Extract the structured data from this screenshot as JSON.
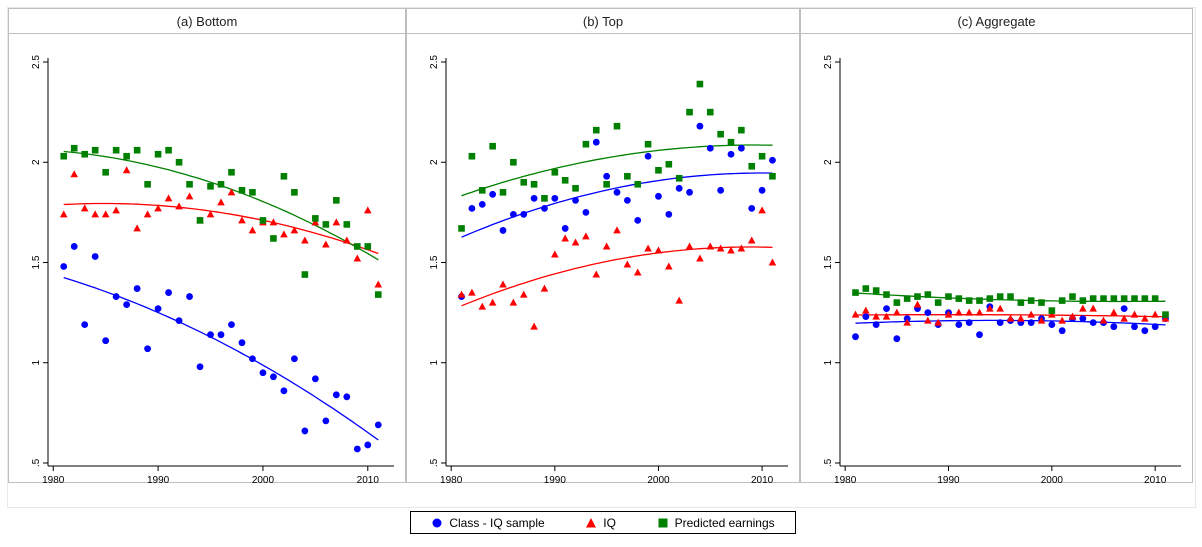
{
  "chart_data": {
    "type": "scatter",
    "panels": [
      {
        "title": "(a) Bottom",
        "xlim": [
          1979.5,
          2012.5
        ],
        "ylim": [
          0.5,
          2.5
        ],
        "series": [
          {
            "name": "Class - IQ sample",
            "color": "#0000ff",
            "marker": "circle",
            "x": [
              1981,
              1982,
              1983,
              1984,
              1985,
              1986,
              1987,
              1988,
              1989,
              1990,
              1991,
              1992,
              1993,
              1994,
              1995,
              1996,
              1997,
              1998,
              1999,
              2000,
              2001,
              2002,
              2003,
              2004,
              2005,
              2006,
              2007,
              2008,
              2009,
              2010,
              2011
            ],
            "y": [
              1.48,
              1.58,
              1.19,
              1.53,
              1.11,
              1.33,
              1.29,
              1.37,
              1.07,
              1.27,
              1.35,
              1.21,
              1.33,
              0.98,
              1.14,
              1.14,
              1.19,
              1.1,
              1.02,
              0.95,
              0.93,
              0.86,
              1.02,
              0.66,
              0.92,
              0.71,
              0.84,
              0.83,
              0.57,
              0.59,
              0.69
            ],
            "fit": [
              1.44,
              0.6
            ]
          },
          {
            "name": "IQ",
            "color": "#ff0000",
            "marker": "triangle",
            "x": [
              1981,
              1982,
              1983,
              1984,
              1985,
              1986,
              1987,
              1988,
              1989,
              1990,
              1991,
              1992,
              1993,
              1994,
              1995,
              1996,
              1997,
              1998,
              1999,
              2000,
              2001,
              2002,
              2003,
              2004,
              2005,
              2006,
              2007,
              2008,
              2009,
              2010,
              2011
            ],
            "y": [
              1.74,
              1.94,
              1.77,
              1.74,
              1.74,
              1.76,
              1.96,
              1.67,
              1.74,
              1.77,
              1.82,
              1.78,
              1.83,
              1.71,
              1.74,
              1.8,
              1.85,
              1.71,
              1.66,
              1.7,
              1.7,
              1.64,
              1.66,
              1.61,
              1.7,
              1.59,
              1.7,
              1.61,
              1.52,
              1.76,
              1.39
            ],
            "fit": [
              1.8,
              1.5
            ]
          },
          {
            "name": "Predicted earnings",
            "color": "#008000",
            "marker": "square",
            "x": [
              1981,
              1982,
              1983,
              1984,
              1985,
              1986,
              1987,
              1988,
              1989,
              1990,
              1991,
              1992,
              1993,
              1994,
              1995,
              1996,
              1997,
              1998,
              1999,
              2000,
              2001,
              2002,
              2003,
              2004,
              2005,
              2006,
              2007,
              2008,
              2009,
              2010,
              2011
            ],
            "y": [
              2.03,
              2.07,
              2.04,
              2.06,
              1.95,
              2.06,
              2.03,
              2.06,
              1.89,
              2.04,
              2.06,
              2.0,
              1.89,
              1.71,
              1.88,
              1.89,
              1.95,
              1.86,
              1.85,
              1.71,
              1.62,
              1.93,
              1.85,
              1.44,
              1.72,
              1.69,
              1.81,
              1.69,
              1.58,
              1.58,
              1.34
            ],
            "fit": [
              2.07,
              1.49
            ]
          }
        ]
      },
      {
        "title": "(b) Top",
        "xlim": [
          1979.5,
          2012.5
        ],
        "ylim": [
          0.5,
          2.5
        ],
        "series": [
          {
            "name": "Class - IQ sample",
            "color": "#0000ff",
            "marker": "circle",
            "x": [
              1981,
              1982,
              1983,
              1984,
              1985,
              1986,
              1987,
              1988,
              1989,
              1990,
              1991,
              1992,
              1993,
              1994,
              1995,
              1996,
              1997,
              1998,
              1999,
              2000,
              2001,
              2002,
              2003,
              2004,
              2005,
              2006,
              2007,
              2008,
              2009,
              2010,
              2011
            ],
            "y": [
              1.33,
              1.77,
              1.79,
              1.84,
              1.66,
              1.74,
              1.74,
              1.82,
              1.77,
              1.82,
              1.67,
              1.81,
              1.75,
              2.1,
              1.93,
              1.85,
              1.81,
              1.71,
              2.03,
              1.83,
              1.74,
              1.87,
              1.85,
              2.18,
              2.07,
              1.86,
              2.04,
              2.07,
              1.77,
              1.86,
              2.01
            ],
            "fit": [
              1.6,
              1.97
            ]
          },
          {
            "name": "IQ",
            "color": "#ff0000",
            "marker": "triangle",
            "x": [
              1981,
              1982,
              1983,
              1984,
              1985,
              1986,
              1987,
              1988,
              1989,
              1990,
              1991,
              1992,
              1993,
              1994,
              1995,
              1996,
              1997,
              1998,
              1999,
              2000,
              2001,
              2002,
              2003,
              2004,
              2005,
              2006,
              2007,
              2008,
              2009,
              2010,
              2011
            ],
            "y": [
              1.34,
              1.35,
              1.28,
              1.3,
              1.39,
              1.3,
              1.34,
              1.18,
              1.37,
              1.54,
              1.62,
              1.6,
              1.63,
              1.44,
              1.58,
              1.66,
              1.49,
              1.45,
              1.57,
              1.56,
              1.48,
              1.31,
              1.58,
              1.52,
              1.58,
              1.57,
              1.56,
              1.57,
              1.61,
              1.76,
              1.5
            ],
            "fit": [
              1.25,
              1.6
            ]
          },
          {
            "name": "Predicted earnings",
            "color": "#008000",
            "marker": "square",
            "x": [
              1981,
              1982,
              1983,
              1984,
              1985,
              1986,
              1987,
              1988,
              1989,
              1990,
              1991,
              1992,
              1993,
              1994,
              1995,
              1996,
              1997,
              1998,
              1999,
              2000,
              2001,
              2002,
              2003,
              2004,
              2005,
              2006,
              2007,
              2008,
              2009,
              2010,
              2011
            ],
            "y": [
              1.67,
              2.03,
              1.86,
              2.08,
              1.85,
              2.0,
              1.9,
              1.89,
              1.82,
              1.95,
              1.91,
              1.87,
              2.09,
              2.16,
              1.89,
              2.18,
              1.93,
              1.89,
              2.09,
              1.96,
              1.99,
              1.92,
              2.25,
              2.39,
              2.25,
              2.14,
              2.1,
              2.16,
              1.98,
              2.03,
              1.93
            ],
            "fit": [
              1.89,
              2.05
            ]
          }
        ]
      },
      {
        "title": "(c) Aggregate",
        "xlim": [
          1979.5,
          2012.5
        ],
        "ylim": [
          0.5,
          2.5
        ],
        "series": [
          {
            "name": "Class - IQ sample",
            "color": "#0000ff",
            "marker": "circle",
            "x": [
              1981,
              1982,
              1983,
              1984,
              1985,
              1986,
              1987,
              1988,
              1989,
              1990,
              1991,
              1992,
              1993,
              1994,
              1995,
              1996,
              1997,
              1998,
              1999,
              2000,
              2001,
              2002,
              2003,
              2004,
              2005,
              2006,
              2007,
              2008,
              2009,
              2010,
              2011
            ],
            "y": [
              1.13,
              1.23,
              1.19,
              1.27,
              1.12,
              1.22,
              1.27,
              1.25,
              1.19,
              1.25,
              1.19,
              1.2,
              1.14,
              1.28,
              1.2,
              1.21,
              1.2,
              1.2,
              1.22,
              1.19,
              1.16,
              1.22,
              1.22,
              1.2,
              1.2,
              1.18,
              1.27,
              1.18,
              1.16,
              1.18,
              1.22
            ],
            "fit": [
              1.19,
              1.22
            ]
          },
          {
            "name": "IQ",
            "color": "#ff0000",
            "marker": "triangle",
            "x": [
              1981,
              1982,
              1983,
              1984,
              1985,
              1986,
              1987,
              1988,
              1989,
              1990,
              1991,
              1992,
              1993,
              1994,
              1995,
              1996,
              1997,
              1998,
              1999,
              2000,
              2001,
              2002,
              2003,
              2004,
              2005,
              2006,
              2007,
              2008,
              2009,
              2010,
              2011
            ],
            "y": [
              1.24,
              1.26,
              1.23,
              1.23,
              1.25,
              1.2,
              1.29,
              1.21,
              1.2,
              1.24,
              1.25,
              1.25,
              1.25,
              1.27,
              1.27,
              1.22,
              1.22,
              1.24,
              1.21,
              1.24,
              1.21,
              1.23,
              1.27,
              1.27,
              1.21,
              1.25,
              1.22,
              1.24,
              1.22,
              1.24,
              1.22
            ],
            "fit": [
              1.23,
              1.24
            ]
          },
          {
            "name": "Predicted earnings",
            "color": "#008000",
            "marker": "square",
            "x": [
              1981,
              1982,
              1983,
              1984,
              1985,
              1986,
              1987,
              1988,
              1989,
              1990,
              1991,
              1992,
              1993,
              1994,
              1995,
              1996,
              1997,
              1998,
              1999,
              2000,
              2001,
              2002,
              2003,
              2004,
              2005,
              2006,
              2007,
              2008,
              2009,
              2010,
              2011
            ],
            "y": [
              1.35,
              1.37,
              1.36,
              1.34,
              1.3,
              1.32,
              1.33,
              1.34,
              1.3,
              1.33,
              1.32,
              1.31,
              1.31,
              1.32,
              1.33,
              1.33,
              1.3,
              1.31,
              1.3,
              1.26,
              1.31,
              1.33,
              1.31,
              1.32,
              1.32,
              1.32,
              1.32,
              1.32,
              1.32,
              1.32,
              1.24
            ],
            "fit": [
              1.33,
              1.29
            ]
          }
        ]
      }
    ],
    "xticks": [
      1980,
      1990,
      2000,
      2010
    ],
    "yticks": [
      0.5,
      1,
      1.5,
      2,
      2.5
    ],
    "ytick_labels": [
      ".5",
      "1",
      "1.5",
      "2",
      "2.5"
    ],
    "grid": false,
    "legend": {
      "placement": "bottom-center",
      "items": [
        "Class - IQ sample",
        "IQ",
        "Predicted earnings"
      ]
    }
  }
}
